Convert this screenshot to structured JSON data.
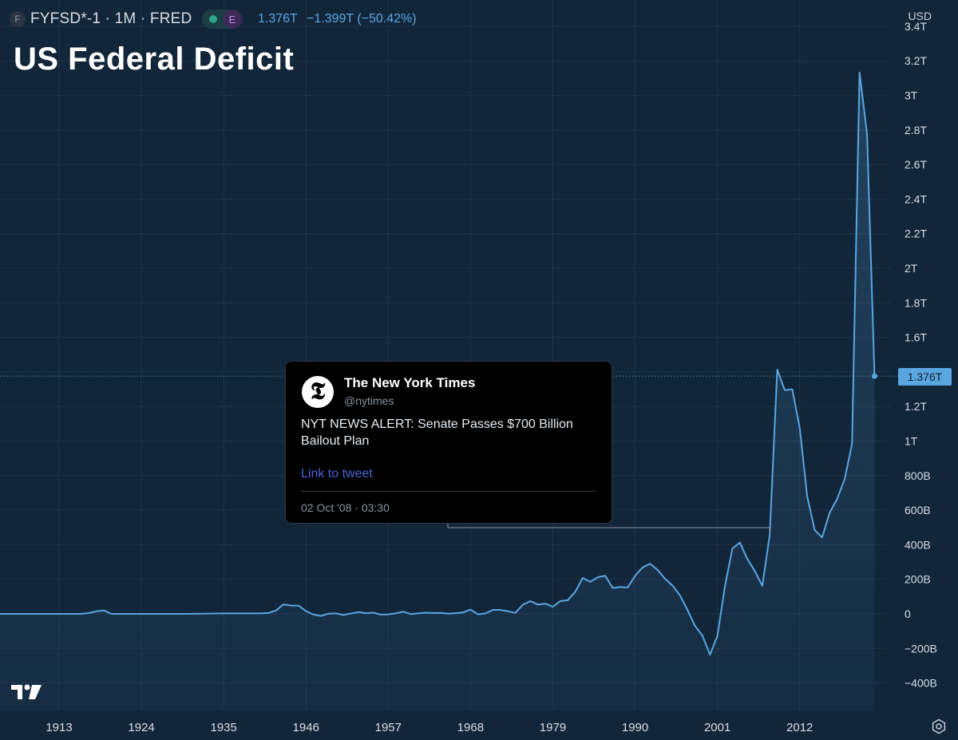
{
  "header": {
    "symbol_icon": "F",
    "symbol": "FYFSD*-1 · 1M · FRED",
    "badge": "E",
    "value": "1.376T",
    "change": "−1.399T (−50.42%)",
    "currency": "USD"
  },
  "title": "US Federal Deficit",
  "price_tag": "1.376T",
  "tweet": {
    "avatar_glyph": "𝕿",
    "author": "The New York Times",
    "handle": "@nytimes",
    "text": "NYT NEWS ALERT: Senate Passes $700 Billion Bailout Plan",
    "link": "Link to tweet",
    "date": "02 Oct '08 · 03:30"
  },
  "colors": {
    "background": "#12263a",
    "line": "#5aa6e0",
    "grid": "#1f3448",
    "axis_text": "#d6dde6"
  },
  "icons": {
    "logo": "tradingview-logo",
    "settings": "settings-icon"
  },
  "chart_data": {
    "type": "area",
    "title": "US Federal Deficit",
    "xlabel": "",
    "ylabel": "",
    "ylim": [
      -0.43,
      3.5
    ],
    "y_unit": "T USD",
    "y_ticks": [
      -0.4,
      -0.2,
      0,
      0.2,
      0.4,
      0.6,
      0.8,
      1.0,
      1.2,
      1.4,
      1.6,
      1.8,
      2.0,
      2.2,
      2.4,
      2.6,
      2.8,
      3.0,
      3.2,
      3.4
    ],
    "y_tick_labels": [
      "−400B",
      "−200B",
      "0",
      "200B",
      "400B",
      "600B",
      "800B",
      "1T",
      "1.2T",
      "1.4T",
      "1.6T",
      "1.8T",
      "2T",
      "2.2T",
      "2.4T",
      "2.6T",
      "2.8T",
      "3T",
      "3.2T",
      "3.4T"
    ],
    "x_ticks": [
      1913,
      1924,
      1935,
      1946,
      1957,
      1968,
      1979,
      1990,
      2001,
      2012
    ],
    "grid": true,
    "last_value": 1.376,
    "annotation": {
      "x": 2008,
      "y": 0.46,
      "label": "NYT NEWS ALERT: Senate Passes $700 Billion Bailout Plan"
    },
    "series": [
      {
        "x": [
          1901,
          1905,
          1910,
          1916,
          1917,
          1918,
          1919,
          1920,
          1925,
          1930,
          1935,
          1940,
          1941,
          1942,
          1943,
          1944,
          1945,
          1946,
          1947,
          1948,
          1949,
          1950,
          1951,
          1952,
          1953,
          1954,
          1955,
          1956,
          1957,
          1958,
          1959,
          1960,
          1961,
          1962,
          1963,
          1964,
          1965,
          1966,
          1967,
          1968,
          1969,
          1970,
          1971,
          1972,
          1973,
          1974,
          1975,
          1976,
          1977,
          1978,
          1979,
          1980,
          1981,
          1982,
          1983,
          1984,
          1985,
          1986,
          1987,
          1988,
          1989,
          1990,
          1991,
          1992,
          1993,
          1994,
          1995,
          1996,
          1997,
          1998,
          1999,
          2000,
          2001,
          2002,
          2003,
          2004,
          2005,
          2006,
          2007,
          2008,
          2009,
          2010,
          2011,
          2012,
          2013,
          2014,
          2015,
          2016,
          2017,
          2018,
          2019,
          2020,
          2021,
          2022
        ],
        "y": [
          0,
          0,
          0,
          0,
          0.005,
          0.015,
          0.02,
          0,
          0,
          0,
          0.003,
          0.003,
          0.005,
          0.02,
          0.055,
          0.048,
          0.048,
          0.016,
          -0.004,
          -0.012,
          0.001,
          0.003,
          -0.006,
          0.002,
          0.01,
          0.004,
          0.007,
          -0.004,
          -0.003,
          0.003,
          0.013,
          -0.001,
          0.003,
          0.007,
          0.005,
          0.006,
          0.001,
          0.004,
          0.009,
          0.025,
          -0.003,
          0.003,
          0.023,
          0.023,
          0.015,
          0.006,
          0.053,
          0.074,
          0.054,
          0.059,
          0.041,
          0.074,
          0.079,
          0.128,
          0.208,
          0.185,
          0.212,
          0.221,
          0.15,
          0.155,
          0.153,
          0.221,
          0.269,
          0.29,
          0.255,
          0.203,
          0.164,
          0.107,
          0.022,
          -0.069,
          -0.126,
          -0.236,
          -0.128,
          0.158,
          0.378,
          0.413,
          0.318,
          0.248,
          0.161,
          0.459,
          1.413,
          1.294,
          1.3,
          1.077,
          0.68,
          0.485,
          0.442,
          0.585,
          0.665,
          0.779,
          0.984,
          3.132,
          2.775,
          1.376
        ]
      }
    ]
  }
}
